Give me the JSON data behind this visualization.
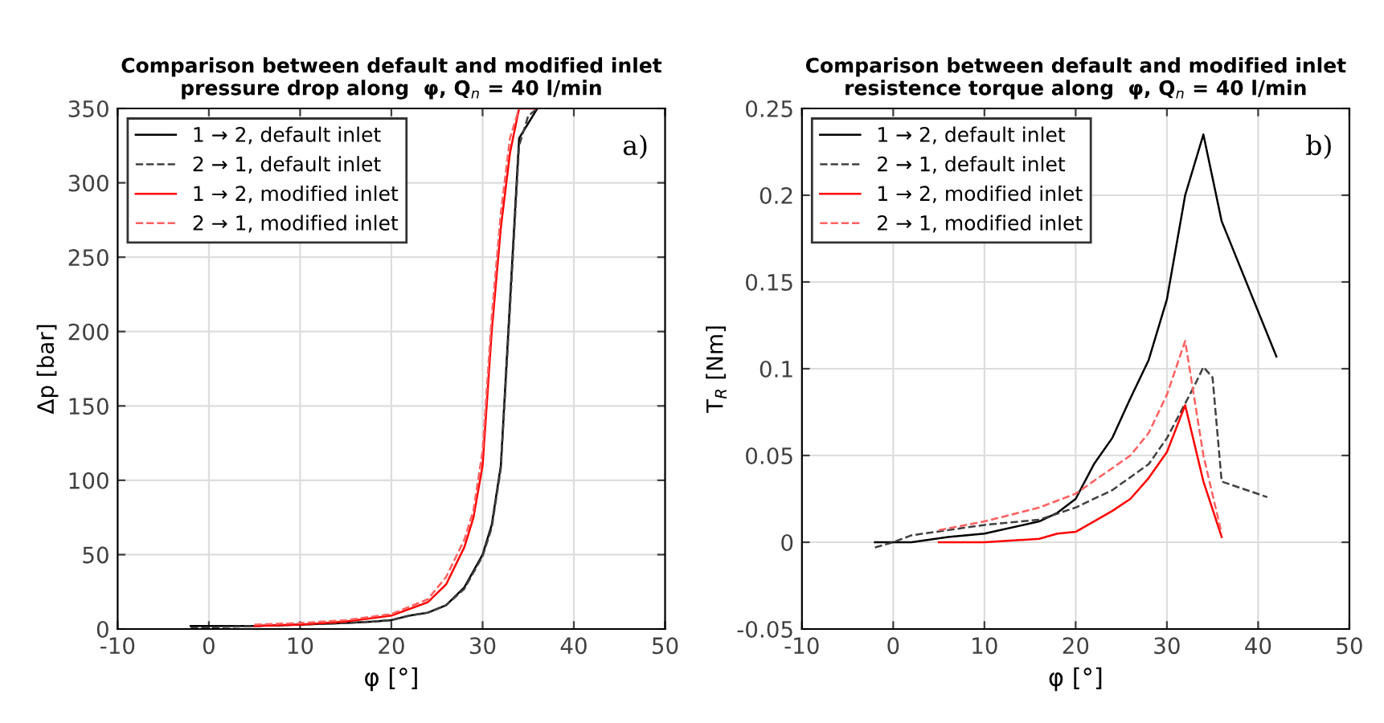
{
  "chart_data": [
    {
      "type": "line",
      "title": "Comparison between default and modified inlet\npressure drop along  φ, Q$_{n}$ = 40 l/min",
      "xlabel": "φ [°]",
      "ylabel": "Δp [bar]",
      "xlim": [
        -10,
        50
      ],
      "xticks": [
        -10,
        0,
        10,
        20,
        30,
        40,
        50
      ],
      "ylim": [
        0,
        350
      ],
      "yticks": [
        0,
        50,
        100,
        150,
        200,
        250,
        300,
        350
      ],
      "grid": true,
      "legend": "top left",
      "annotations": [
        "a)"
      ],
      "series": [
        {
          "name": "1 → 2, default inlet",
          "color": "#000000",
          "line_style": "solid",
          "x": [
            -2,
            0,
            5,
            10,
            15,
            18,
            20,
            22,
            24,
            26,
            28,
            30,
            31,
            32,
            33,
            34,
            35,
            36
          ],
          "values": [
            2,
            2,
            2,
            3,
            4,
            5,
            6,
            9,
            11,
            16,
            28,
            50,
            70,
            110,
            220,
            330,
            340,
            350
          ]
        },
        {
          "name": "2 → 1, default inlet",
          "color": "#404040",
          "line_style": "dashed",
          "x": [
            -2,
            0,
            5,
            10,
            15,
            18,
            20,
            22,
            24,
            26,
            28,
            30,
            31,
            32,
            33,
            34,
            35,
            36
          ],
          "values": [
            1,
            1,
            2,
            3,
            4,
            5,
            6,
            9,
            11,
            16,
            27,
            49,
            68,
            108,
            215,
            325,
            345,
            350
          ]
        },
        {
          "name": "1 → 2, modified inlet",
          "color": "#ff0000",
          "line_style": "solid",
          "x": [
            5,
            10,
            15,
            20,
            24,
            26,
            28,
            29,
            30,
            31,
            32,
            33,
            34,
            36
          ],
          "values": [
            2,
            3,
            5,
            9,
            18,
            30,
            55,
            75,
            110,
            200,
            270,
            320,
            350,
            350
          ]
        },
        {
          "name": "2 → 1, modified inlet",
          "color": "#ff6060",
          "line_style": "dashed",
          "x": [
            5,
            10,
            15,
            20,
            24,
            26,
            28,
            29,
            30,
            31,
            32,
            33,
            34,
            36
          ],
          "values": [
            3,
            4,
            6,
            10,
            20,
            35,
            60,
            80,
            120,
            210,
            280,
            330,
            350,
            350
          ]
        }
      ]
    },
    {
      "type": "line",
      "title": "Comparison between default and modified inlet\nresistence torque along  φ, Q$_{n}$ = 40 l/min",
      "xlabel": "φ [°]",
      "ylabel": "T$_{R}$ [Nm]",
      "xlim": [
        -10,
        50
      ],
      "xticks": [
        -10,
        0,
        10,
        20,
        30,
        40,
        50
      ],
      "ylim": [
        -0.05,
        0.25
      ],
      "yticks": [
        -0.05,
        0,
        0.05,
        0.1,
        0.15,
        0.2,
        0.25
      ],
      "grid": true,
      "legend": "top left",
      "annotations": [
        "b)"
      ],
      "series": [
        {
          "name": "1 → 2, default inlet",
          "color": "#000000",
          "line_style": "solid",
          "x": [
            -2,
            0,
            2,
            6,
            10,
            16,
            18,
            20,
            22,
            24,
            26,
            28,
            30,
            32,
            34,
            36,
            42
          ],
          "values": [
            0,
            0,
            0,
            0.003,
            0.005,
            0.012,
            0.017,
            0.025,
            0.045,
            0.06,
            0.083,
            0.105,
            0.14,
            0.2,
            0.235,
            0.185,
            0.107
          ]
        },
        {
          "name": "2 → 1, default inlet",
          "color": "#404040",
          "line_style": "dashed",
          "x": [
            -2,
            0,
            2,
            10,
            16,
            20,
            24,
            28,
            30,
            32,
            33,
            34,
            35,
            36,
            41
          ],
          "values": [
            -0.003,
            0,
            0.004,
            0.01,
            0.013,
            0.02,
            0.03,
            0.045,
            0.06,
            0.08,
            0.09,
            0.101,
            0.095,
            0.035,
            0.026
          ]
        },
        {
          "name": "1 → 2, modified inlet",
          "color": "#ff0000",
          "line_style": "solid",
          "x": [
            5,
            10,
            16,
            18,
            20,
            24,
            26,
            28,
            30,
            32,
            34,
            36
          ],
          "values": [
            0,
            0,
            0.002,
            0.005,
            0.006,
            0.018,
            0.025,
            0.037,
            0.052,
            0.079,
            0.035,
            0.003
          ]
        },
        {
          "name": "2 → 1, modified inlet",
          "color": "#ff6060",
          "line_style": "dashed",
          "x": [
            5,
            10,
            16,
            20,
            26,
            28,
            30,
            32,
            34,
            36
          ],
          "values": [
            0.007,
            0.012,
            0.02,
            0.028,
            0.05,
            0.063,
            0.085,
            0.116,
            0.05,
            0.005
          ]
        }
      ]
    }
  ]
}
